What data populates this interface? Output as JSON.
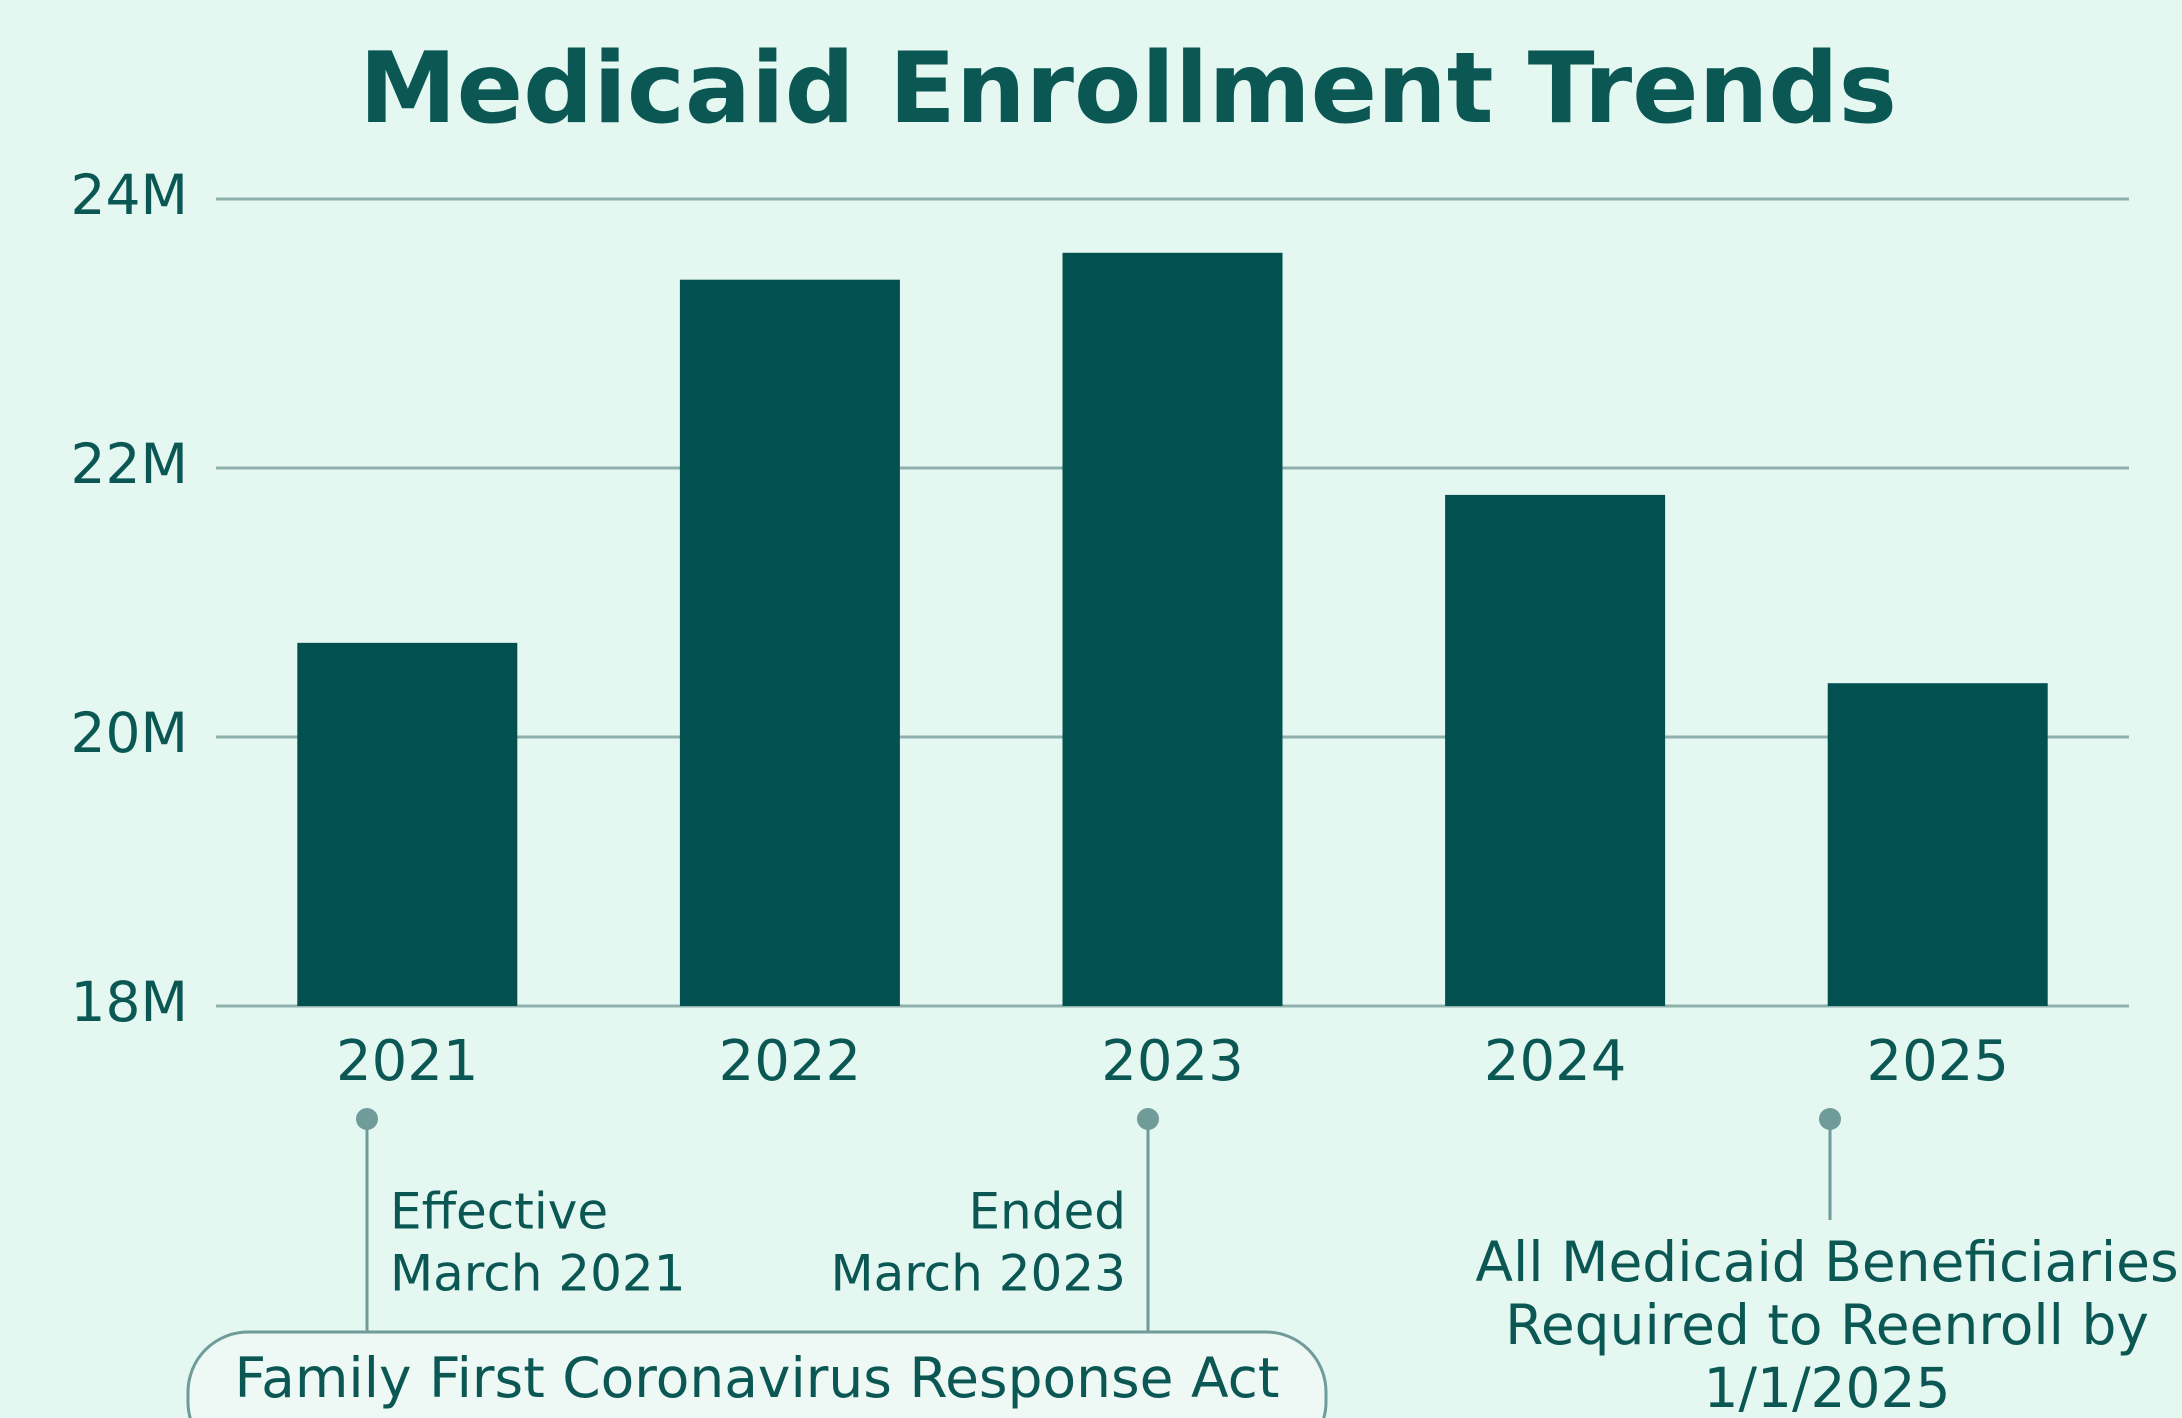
{
  "chart_data": {
    "type": "bar",
    "title": "Medicaid Enrollment Trends",
    "categories": [
      "2021",
      "2022",
      "2023",
      "2024",
      "2025"
    ],
    "values": [
      20.7,
      23.4,
      23.6,
      21.8,
      20.4
    ],
    "color": "#02504f",
    "ylim": [
      18,
      24
    ],
    "yticks": [
      {
        "value": 18,
        "label": "18M"
      },
      {
        "value": 20,
        "label": "20M"
      },
      {
        "value": 22,
        "label": "22M"
      },
      {
        "value": 24,
        "label": "24M"
      }
    ],
    "grid": true,
    "annotations": {
      "start": [
        "Effective",
        "March 2021"
      ],
      "end": [
        "Ended",
        "March 2023"
      ],
      "act": "Family First Coronavirus Response Act",
      "reenroll": [
        "All Medicaid Beneficiaries",
        "Required to Reenroll by",
        "1/1/2025"
      ]
    }
  }
}
